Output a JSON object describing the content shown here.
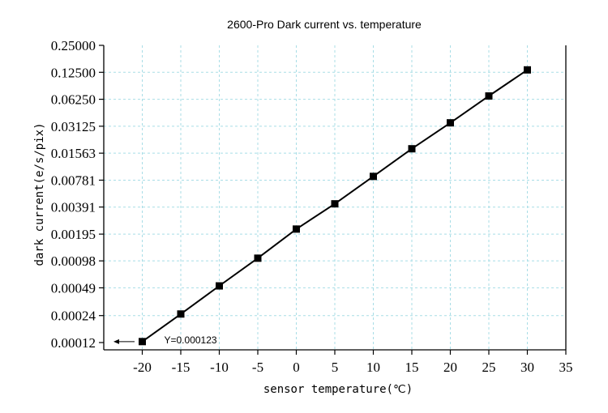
{
  "chart_data": {
    "type": "line",
    "title": "2600-Pro Dark current vs. temperature",
    "xlabel": "sensor temperature(℃)",
    "ylabel": "dark current(e/s/pix)",
    "y_scale": "log2",
    "xlim": [
      -25,
      35
    ],
    "x_ticks": [
      -20,
      -15,
      -10,
      -5,
      0,
      5,
      10,
      15,
      20,
      25,
      30,
      35
    ],
    "x_tick_labels": [
      "-20",
      "-15",
      "-10",
      "-5",
      "0",
      "5",
      "10",
      "15",
      "20",
      "25",
      "30",
      "35"
    ],
    "ylim": [
      0.00012,
      0.25
    ],
    "y_ticks": [
      0.00012,
      0.00024,
      0.00049,
      0.00098,
      0.00195,
      0.00391,
      0.00781,
      0.01563,
      0.03125,
      0.0625,
      0.125,
      0.25
    ],
    "y_tick_labels": [
      "0.00012",
      "0.00024",
      "0.00049",
      "0.00098",
      "0.00195",
      "0.00391",
      "0.00781",
      "0.01563",
      "0.03125",
      "0.06250",
      "0.12500",
      "0.25000"
    ],
    "grid": true,
    "series": [
      {
        "name": "dark current",
        "x": [
          -20,
          -15,
          -10,
          -5,
          0,
          5,
          10,
          15,
          20,
          25,
          30
        ],
        "values": [
          0.000123,
          0.00025,
          0.000515,
          0.00105,
          0.00222,
          0.00425,
          0.0086,
          0.0175,
          0.0341,
          0.068,
          0.133
        ]
      }
    ],
    "annotations": [
      {
        "text": "Y=0.000123",
        "x": -20,
        "y": 0.000123,
        "arrow": "left"
      }
    ]
  }
}
